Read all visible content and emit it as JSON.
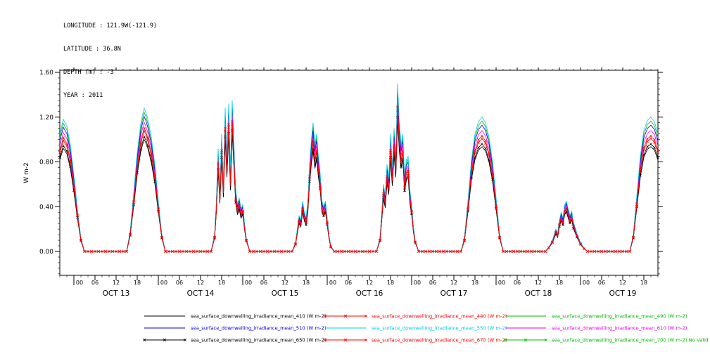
{
  "header": {
    "lines": [
      "LONGITUDE : 121.9W(-121.9)",
      "LATITUDE : 36.8N",
      "DEPTH (m) : -3",
      "YEAR : 2011"
    ]
  },
  "chart_data": {
    "type": "line",
    "title": "",
    "ylabel": "W m-2",
    "ylim": [
      0,
      1.6
    ],
    "yticks": [
      0.0,
      0.4,
      0.8,
      1.2,
      1.6
    ],
    "ytick_labels": [
      "0.00",
      "0.40",
      "0.80",
      "1.20",
      "1.60"
    ],
    "x_hour_labels": [
      "00",
      "06",
      "12",
      "18"
    ],
    "day_labels": [
      "OCT 13",
      "OCT 14",
      "OCT 15",
      "OCT 16",
      "OCT 17",
      "OCT 18",
      "OCT 19"
    ],
    "x_unit": "hour",
    "x_range_hours": [
      2,
      172
    ],
    "grid": false,
    "legend_position": "bottom",
    "envelope_points": [
      [
        2,
        1.05
      ],
      [
        3,
        1.18
      ],
      [
        4,
        1.12
      ],
      [
        5,
        0.95
      ],
      [
        6,
        0.68
      ],
      [
        7,
        0.38
      ],
      [
        8,
        0.12
      ],
      [
        9,
        0
      ],
      [
        21,
        0
      ],
      [
        22,
        0.18
      ],
      [
        23,
        0.52
      ],
      [
        24,
        0.88
      ],
      [
        25,
        1.14
      ],
      [
        25.5,
        1.22
      ],
      [
        26,
        1.28
      ],
      [
        26.5,
        1.24
      ],
      [
        27,
        1.18
      ],
      [
        27.5,
        1.1
      ],
      [
        28,
        1.02
      ],
      [
        29,
        0.78
      ],
      [
        30,
        0.45
      ],
      [
        31,
        0.15
      ],
      [
        32,
        0
      ],
      [
        45,
        0
      ],
      [
        46,
        0.15
      ],
      [
        46.5,
        0.45
      ],
      [
        47,
        0.92
      ],
      [
        47.5,
        0.55
      ],
      [
        48,
        1.05
      ],
      [
        48.5,
        0.62
      ],
      [
        49,
        1.28
      ],
      [
        49.5,
        0.85
      ],
      [
        50,
        1.32
      ],
      [
        50.5,
        0.7
      ],
      [
        51,
        1.35
      ],
      [
        51.5,
        0.95
      ],
      [
        52,
        0.55
      ],
      [
        52.5,
        0.42
      ],
      [
        53,
        0.48
      ],
      [
        53.5,
        0.38
      ],
      [
        54,
        0.42
      ],
      [
        54.5,
        0.25
      ],
      [
        55,
        0.12
      ],
      [
        56,
        0
      ],
      [
        68,
        0
      ],
      [
        69,
        0.08
      ],
      [
        69.5,
        0.2
      ],
      [
        70,
        0.32
      ],
      [
        70.5,
        0.28
      ],
      [
        71,
        0.45
      ],
      [
        71.5,
        0.35
      ],
      [
        72,
        0.3
      ],
      [
        72.5,
        0.45
      ],
      [
        73,
        0.78
      ],
      [
        73.5,
        1.0
      ],
      [
        74,
        1.15
      ],
      [
        74.5,
        0.95
      ],
      [
        75,
        1.05
      ],
      [
        75.5,
        0.85
      ],
      [
        76,
        0.7
      ],
      [
        76.5,
        0.45
      ],
      [
        77,
        0.4
      ],
      [
        77.5,
        0.45
      ],
      [
        78,
        0.3
      ],
      [
        78.5,
        0.15
      ],
      [
        79,
        0.05
      ],
      [
        80,
        0
      ],
      [
        92,
        0
      ],
      [
        93,
        0.12
      ],
      [
        93.5,
        0.35
      ],
      [
        94,
        0.6
      ],
      [
        94.5,
        0.5
      ],
      [
        95,
        0.78
      ],
      [
        95.5,
        0.65
      ],
      [
        96,
        1.05
      ],
      [
        96.5,
        0.75
      ],
      [
        97,
        1.1
      ],
      [
        97.5,
        0.85
      ],
      [
        98,
        1.5
      ],
      [
        98.5,
        1.15
      ],
      [
        99,
        0.95
      ],
      [
        99.5,
        1.05
      ],
      [
        100,
        0.68
      ],
      [
        100.5,
        0.82
      ],
      [
        101,
        0.85
      ],
      [
        101.5,
        0.55
      ],
      [
        102,
        0.42
      ],
      [
        102.5,
        0.22
      ],
      [
        103,
        0.1
      ],
      [
        104,
        0
      ],
      [
        116,
        0
      ],
      [
        117,
        0.12
      ],
      [
        118,
        0.45
      ],
      [
        119,
        0.82
      ],
      [
        120,
        1.05
      ],
      [
        121,
        1.16
      ],
      [
        122,
        1.2
      ],
      [
        123,
        1.15
      ],
      [
        124,
        1.02
      ],
      [
        125,
        0.8
      ],
      [
        126,
        0.48
      ],
      [
        127,
        0.15
      ],
      [
        128,
        0
      ],
      [
        140,
        0
      ],
      [
        141,
        0.04
      ],
      [
        142,
        0.1
      ],
      [
        143,
        0.2
      ],
      [
        143.5,
        0.16
      ],
      [
        144,
        0.28
      ],
      [
        144.5,
        0.35
      ],
      [
        145,
        0.3
      ],
      [
        145.5,
        0.42
      ],
      [
        146,
        0.45
      ],
      [
        146.5,
        0.38
      ],
      [
        147,
        0.32
      ],
      [
        147.5,
        0.36
      ],
      [
        148,
        0.26
      ],
      [
        149,
        0.16
      ],
      [
        150,
        0.08
      ],
      [
        151,
        0.03
      ],
      [
        152,
        0
      ],
      [
        164,
        0
      ],
      [
        165,
        0.15
      ],
      [
        166,
        0.5
      ],
      [
        167,
        0.85
      ],
      [
        168,
        1.08
      ],
      [
        169,
        1.17
      ],
      [
        170,
        1.2
      ],
      [
        171,
        1.16
      ],
      [
        172,
        1.05
      ]
    ],
    "series": [
      {
        "wavelength": 410,
        "label": "sea_surface_downwelling_irradiance_mean_410 (W m-2)",
        "color": "#000000",
        "marker": "none",
        "scale": 0.78
      },
      {
        "wavelength": 440,
        "label": "sea_surface_downwelling_irradiance_mean_440 (W m-2)",
        "color": "#ff0000",
        "marker": "x",
        "scale": 0.86
      },
      {
        "wavelength": 490,
        "label": "sea_surface_downwelling_irradiance_mean_490 (W m-2)",
        "color": "#00bb00",
        "marker": "none",
        "scale": 0.97
      },
      {
        "wavelength": 510,
        "label": "sea_surface_downwelling_irradiance_mean_510 (W m-2)",
        "color": "#0000dd",
        "marker": "none",
        "scale": 0.94
      },
      {
        "wavelength": 550,
        "label": "sea_surface_downwelling_irradiance_mean_550 (W m-2)",
        "color": "#00ccee",
        "marker": "none",
        "scale": 1.0
      },
      {
        "wavelength": 610,
        "label": "sea_surface_downwelling_irradiance_mean_610 (W m-2)",
        "color": "#ee00ee",
        "marker": "none",
        "scale": 0.9
      },
      {
        "wavelength": 650,
        "label": "sea_surface_downwelling_irradiance_mean_650 (W m-2)",
        "color": "#000000",
        "marker": "x",
        "scale": 0.8
      },
      {
        "wavelength": 670,
        "label": "sea_surface_downwelling_irradiance_mean_670 (W m-2)",
        "color": "#ff0000",
        "marker": "x",
        "scale": 0.84
      },
      {
        "wavelength": 700,
        "label": "sea_surface_downwelling_irradiance_mean_700 (W m-2)",
        "color": "#00bb00",
        "marker": "x",
        "scale": null,
        "note": "No Valid Data"
      }
    ]
  }
}
